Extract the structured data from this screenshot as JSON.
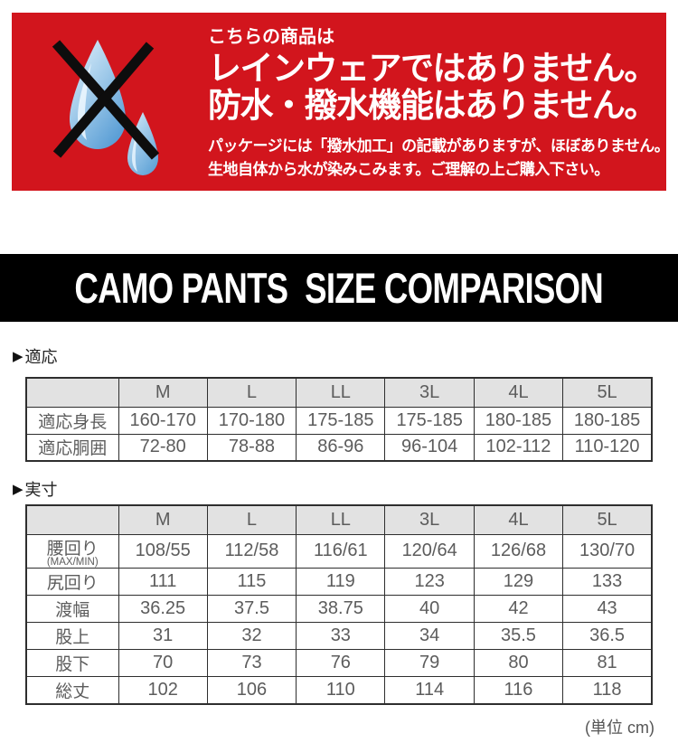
{
  "warning_banner": {
    "bg_color": "#d2151d",
    "intro": "こちらの商品は",
    "headline_line1": "レインウェアではありません。",
    "headline_line2": "防水・撥水機能はありません。",
    "note_line1": "パッケージには「撥水加工」の記載がありますが、ほぼありません。",
    "note_line2": "生地自体から水が染みこみます。ご理解の上ご購入下さい。",
    "icon": "no-water-drops-icon",
    "drop_color_light": "#d9edfa",
    "drop_color_dark": "#5b9fd6"
  },
  "title_banner": {
    "bg_color": "#000000",
    "title": "CAMO PANTS  SIZE COMPARISON"
  },
  "fit_section": {
    "marker": "▶",
    "label": "適応",
    "table": {
      "columns": [
        "",
        "M",
        "L",
        "LL",
        "3L",
        "4L",
        "5L"
      ],
      "rows": [
        {
          "label": "適応身長",
          "values": [
            "160-170",
            "170-180",
            "175-185",
            "175-185",
            "180-185",
            "180-185"
          ]
        },
        {
          "label": "適応胴囲",
          "values": [
            "72-80",
            "78-88",
            "86-96",
            "96-104",
            "102-112",
            "110-120"
          ]
        }
      ]
    }
  },
  "actual_section": {
    "marker": "▶",
    "label": "実寸",
    "table": {
      "columns": [
        "",
        "M",
        "L",
        "LL",
        "3L",
        "4L",
        "5L"
      ],
      "rows": [
        {
          "label": "腰回り",
          "sublabel": "(MAX/MIN)",
          "values": [
            "108/55",
            "112/58",
            "116/61",
            "120/64",
            "126/68",
            "130/70"
          ]
        },
        {
          "label": "尻回り",
          "values": [
            "111",
            "115",
            "119",
            "123",
            "129",
            "133"
          ]
        },
        {
          "label": "渡幅",
          "values": [
            "36.25",
            "37.5",
            "38.75",
            "40",
            "42",
            "43"
          ]
        },
        {
          "label": "股上",
          "values": [
            "31",
            "32",
            "33",
            "34",
            "35.5",
            "36.5"
          ]
        },
        {
          "label": "股下",
          "values": [
            "70",
            "73",
            "76",
            "79",
            "80",
            "81"
          ]
        },
        {
          "label": "総丈",
          "values": [
            "102",
            "106",
            "110",
            "114",
            "116",
            "118"
          ]
        }
      ]
    }
  },
  "unit_note": "(単位 cm)"
}
